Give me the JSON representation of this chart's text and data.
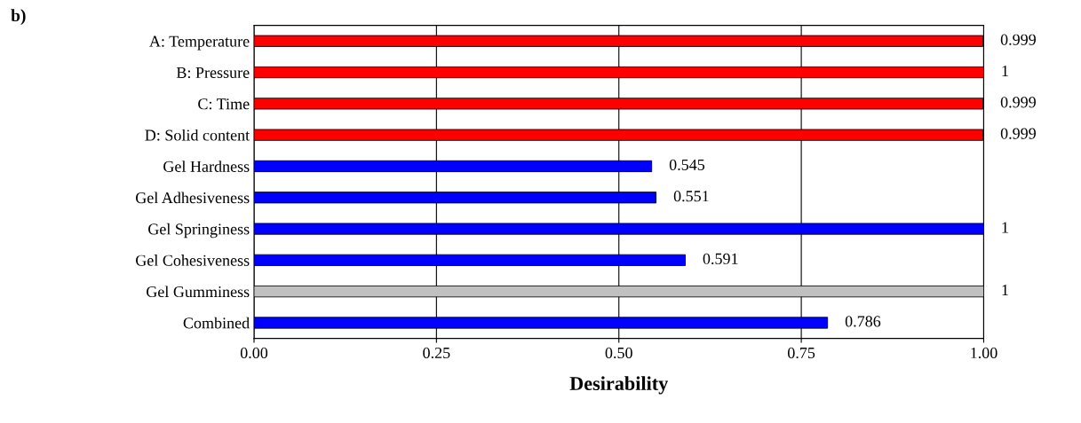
{
  "chart_data": {
    "type": "bar",
    "orientation": "horizontal",
    "title": "b)",
    "xlabel": "Desirability",
    "categories": [
      "A: Temperature",
      "B: Pressure",
      "C: Time",
      "D: Solid content",
      "Gel Hardness",
      "Gel Adhesiveness",
      "Gel Springiness",
      "Gel Cohesiveness",
      "Gel Gumminess",
      "Combined"
    ],
    "values": [
      0.999,
      1,
      0.999,
      0.999,
      0.545,
      0.551,
      1,
      0.591,
      1,
      0.786
    ],
    "colors": [
      "#ff0000",
      "#ff0000",
      "#ff0000",
      "#ff0000",
      "#0000ff",
      "#0000ff",
      "#0000ff",
      "#0000ff",
      "#c0c0c0",
      "#0000ff"
    ],
    "data_labels": true,
    "xlim": [
      0,
      1
    ],
    "xticks": [
      {
        "value": 0,
        "label": "0.00"
      },
      {
        "value": 0.25,
        "label": "0.25"
      },
      {
        "value": 0.5,
        "label": "0.50"
      },
      {
        "value": 0.75,
        "label": "0.75"
      },
      {
        "value": 1,
        "label": "1.00"
      }
    ],
    "grid": "x"
  }
}
